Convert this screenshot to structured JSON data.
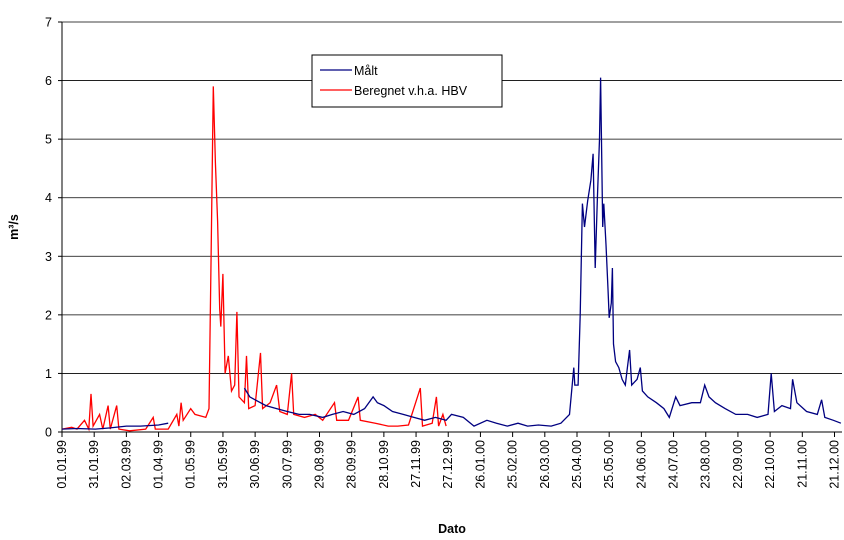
{
  "chart_data": {
    "type": "line",
    "ylabel": "m³/s",
    "xlabel": "Dato",
    "xlim": [
      "01.01.99",
      "28.12.00"
    ],
    "xticks": [
      "01.01.99",
      "31.01.99",
      "02.03.99",
      "01.04.99",
      "01.05.99",
      "31.05.99",
      "30.06.99",
      "30.07.99",
      "29.08.99",
      "28.09.99",
      "28.10.99",
      "27.11.99",
      "27.12.99",
      "26.01.00",
      "25.02.00",
      "26.03.00",
      "25.04.00",
      "25.05.00",
      "24.06.00",
      "24.07.00",
      "23.08.00",
      "22.09.00",
      "22.10.00",
      "21.11.00",
      "21.12.00"
    ],
    "ylim": [
      0,
      7
    ],
    "yticks": [
      0,
      1,
      2,
      3,
      4,
      5,
      6,
      7
    ],
    "grid": true,
    "legend": "upper center",
    "series": [
      {
        "name": "Målt",
        "color": "#000080",
        "x": [
          "01.01.99",
          "15.01.99",
          "01.02.99",
          "15.02.99",
          "02.03.99",
          "15.03.99",
          "01.04.99",
          "10.04.99",
          "15.04.99",
          "20.06.99",
          "25.06.99",
          "30.06.99",
          "10.07.99",
          "20.07.99",
          "30.07.99",
          "10.08.99",
          "20.08.99",
          "01.09.99",
          "10.09.99",
          "20.09.99",
          "30.09.99",
          "10.10.99",
          "18.10.99",
          "22.10.99",
          "28.10.99",
          "05.11.99",
          "15.11.99",
          "25.11.99",
          "05.12.99",
          "15.12.99",
          "25.12.99",
          "30.12.99",
          "10.01.00",
          "20.01.00",
          "01.02.00",
          "10.02.00",
          "20.02.00",
          "01.03.00",
          "10.03.00",
          "20.03.00",
          "01.04.00",
          "10.04.00",
          "18.04.00",
          "22.04.00",
          "23.04.00",
          "26.04.00",
          "28.04.00",
          "30.04.00",
          "02.05.00",
          "05.05.00",
          "08.05.00",
          "10.05.00",
          "12.05.00",
          "14.05.00",
          "16.05.00",
          "17.05.00",
          "19.05.00",
          "20.05.00",
          "22.05.00",
          "24.05.00",
          "25.05.00",
          "27.05.00",
          "28.05.00",
          "29.05.00",
          "31.05.00",
          "03.06.00",
          "06.06.00",
          "09.06.00",
          "11.06.00",
          "13.06.00",
          "15.06.00",
          "20.06.00",
          "23.06.00",
          "25.06.00",
          "30.06.00",
          "08.07.00",
          "15.07.00",
          "20.07.00",
          "26.07.00",
          "30.07.00",
          "10.08.00",
          "18.08.00",
          "22.08.00",
          "26.08.00",
          "01.09.00",
          "10.09.00",
          "20.09.00",
          "01.10.00",
          "10.10.00",
          "20.10.00",
          "23.10.00",
          "26.10.00",
          "02.11.00",
          "10.11.00",
          "12.11.00",
          "16.11.00",
          "25.11.00",
          "05.12.00",
          "09.12.00",
          "12.12.00",
          "20.12.00",
          "27.12.00"
        ],
        "values": [
          0.05,
          0.06,
          0.05,
          0.07,
          0.1,
          0.1,
          0.12,
          0.15,
          null,
          0.75,
          0.6,
          0.55,
          0.45,
          0.4,
          0.35,
          0.3,
          0.3,
          0.25,
          0.3,
          0.35,
          0.3,
          0.4,
          0.6,
          0.5,
          0.45,
          0.35,
          0.3,
          0.25,
          0.2,
          0.25,
          0.2,
          0.3,
          0.25,
          0.1,
          0.2,
          0.15,
          0.1,
          0.15,
          0.1,
          0.12,
          0.1,
          0.15,
          0.3,
          1.1,
          0.8,
          0.8,
          2.0,
          3.9,
          3.5,
          3.95,
          4.3,
          4.75,
          2.8,
          4.0,
          5.0,
          6.05,
          3.5,
          3.9,
          3.2,
          2.4,
          1.95,
          2.2,
          2.8,
          1.5,
          1.2,
          1.1,
          0.9,
          0.8,
          1.1,
          1.4,
          0.8,
          0.9,
          1.1,
          0.7,
          0.6,
          0.5,
          0.4,
          0.25,
          0.6,
          0.45,
          0.5,
          0.5,
          0.8,
          0.6,
          0.5,
          0.4,
          0.3,
          0.3,
          0.25,
          0.3,
          1.0,
          0.35,
          0.45,
          0.4,
          0.9,
          0.5,
          0.35,
          0.3,
          0.55,
          0.25,
          0.2,
          0.15
        ]
      },
      {
        "name": "Beregnet v.h.a. HBV",
        "color": "#ff0000",
        "x": [
          "01.01.99",
          "10.01.99",
          "15.01.99",
          "22.01.99",
          "26.01.99",
          "28.01.99",
          "30.01.99",
          "05.02.99",
          "08.02.99",
          "13.02.99",
          "15.02.99",
          "21.02.99",
          "23.02.99",
          "05.03.99",
          "20.03.99",
          "27.03.99",
          "29.03.99",
          "10.04.99",
          "18.04.99",
          "20.04.99",
          "22.04.99",
          "24.04.99",
          "01.05.99",
          "05.05.99",
          "15.05.99",
          "18.05.99",
          "20.05.99",
          "22.05.99",
          "24.05.99",
          "26.05.99",
          "28.05.99",
          "29.05.99",
          "31.05.99",
          "02.06.99",
          "05.06.99",
          "08.06.99",
          "11.06.99",
          "13.06.99",
          "15.06.99",
          "20.06.99",
          "22.06.99",
          "24.06.99",
          "30.06.99",
          "05.07.99",
          "07.07.99",
          "14.07.99",
          "20.07.99",
          "23.07.99",
          "30.07.99",
          "03.08.99",
          "05.08.99",
          "15.08.99",
          "25.08.99",
          "01.09.99",
          "12.09.99",
          "14.09.99",
          "25.09.99",
          "04.10.99",
          "06.10.99",
          "20.10.99",
          "01.11.99",
          "10.11.99",
          "20.11.99",
          "01.12.99",
          "03.12.99",
          "12.12.99",
          "16.12.99",
          "18.12.99",
          "22.12.99",
          "25.12.99"
        ],
        "values": [
          0.05,
          0.08,
          0.05,
          0.2,
          0.05,
          0.65,
          0.1,
          0.3,
          0.05,
          0.45,
          0.05,
          0.45,
          0.05,
          0.02,
          0.05,
          0.25,
          0.05,
          0.05,
          0.3,
          0.1,
          0.5,
          0.2,
          0.4,
          0.3,
          0.25,
          0.4,
          3.0,
          5.9,
          4.6,
          3.6,
          2.1,
          1.8,
          2.7,
          1.0,
          1.3,
          0.7,
          0.8,
          2.05,
          0.6,
          0.5,
          1.3,
          0.4,
          0.45,
          1.35,
          0.4,
          0.5,
          0.8,
          0.35,
          0.3,
          1.0,
          0.3,
          0.25,
          0.3,
          0.2,
          0.5,
          0.2,
          0.2,
          0.6,
          0.2,
          0.15,
          0.1,
          0.1,
          0.12,
          0.75,
          0.1,
          0.15,
          0.6,
          0.1,
          0.3,
          0.1
        ]
      }
    ]
  }
}
